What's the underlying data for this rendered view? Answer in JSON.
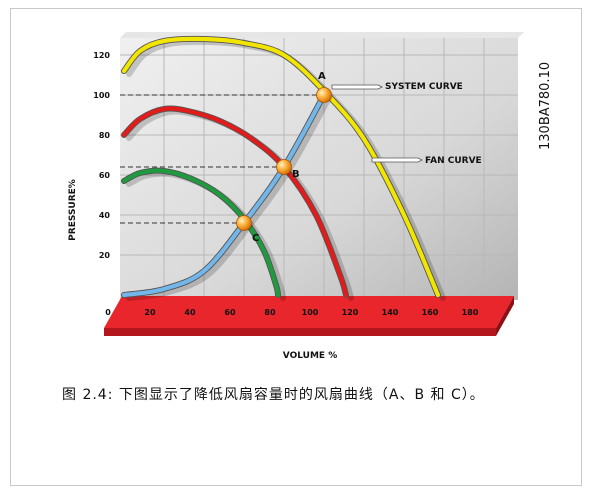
{
  "document": {
    "caption": "图 2.4: 下图显示了降低风扇容量时的风扇曲线（A、B 和 C）。",
    "doc_id": "130BA780.10"
  },
  "chart_data": {
    "type": "line",
    "xlabel": "VOLUME %",
    "ylabel": "PRESSURE%",
    "xlim": [
      0,
      180
    ],
    "ylim": [
      0,
      130
    ],
    "x_ticks": [
      0,
      20,
      40,
      60,
      80,
      100,
      120,
      140,
      160,
      180
    ],
    "y_ticks": [
      20,
      40,
      60,
      80,
      100,
      120
    ],
    "grid": true,
    "callouts": [
      "SYSTEM CURVE",
      "FAN CURVE"
    ],
    "series": [
      {
        "role": "fan-100",
        "color": "#f2e600",
        "points": [
          [
            0,
            112
          ],
          [
            8,
            122
          ],
          [
            20,
            127
          ],
          [
            40,
            128
          ],
          [
            60,
            126
          ],
          [
            80,
            120
          ],
          [
            100,
            102
          ],
          [
            120,
            78
          ],
          [
            140,
            40
          ],
          [
            157,
            0
          ]
        ]
      },
      {
        "role": "fan-80",
        "color": "#e21b1b",
        "points": [
          [
            0,
            80
          ],
          [
            8,
            88
          ],
          [
            20,
            93
          ],
          [
            32,
            92
          ],
          [
            48,
            87
          ],
          [
            64,
            78
          ],
          [
            80,
            64
          ],
          [
            96,
            40
          ],
          [
            108,
            10
          ],
          [
            111,
            0
          ]
        ]
      },
      {
        "role": "fan-60",
        "color": "#1f9a3e",
        "points": [
          [
            0,
            57
          ],
          [
            8,
            61
          ],
          [
            20,
            62
          ],
          [
            34,
            58
          ],
          [
            48,
            50
          ],
          [
            60,
            38
          ],
          [
            70,
            22
          ],
          [
            76,
            5
          ],
          [
            77,
            0
          ]
        ]
      },
      {
        "role": "system",
        "color": "#72b6ea",
        "points": [
          [
            0,
            0
          ],
          [
            20,
            3
          ],
          [
            40,
            12
          ],
          [
            60,
            36
          ],
          [
            80,
            64
          ],
          [
            100,
            100
          ]
        ]
      }
    ],
    "operating_points": [
      {
        "label": "A",
        "x": 100,
        "y": 100
      },
      {
        "label": "B",
        "x": 80,
        "y": 64
      },
      {
        "label": "C",
        "x": 60,
        "y": 36
      }
    ],
    "colors": {
      "panel": "#dcdcdc",
      "grid": "#b8b8b8",
      "floor": "#e8262b",
      "marker": "#f5a623"
    }
  }
}
